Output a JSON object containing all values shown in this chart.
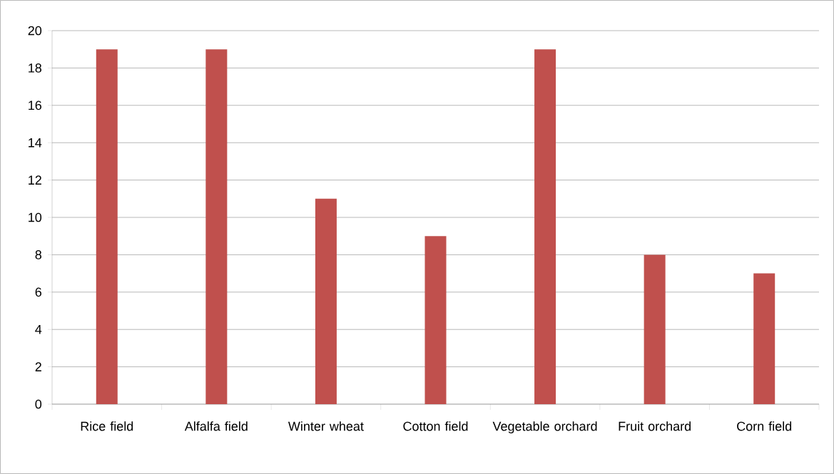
{
  "chart_data": {
    "type": "bar",
    "categories": [
      "Rice field",
      "Alfalfa field",
      "Winter wheat",
      "Cotton field",
      "Vegetable orchard",
      "Fruit orchard",
      "Corn field"
    ],
    "values": [
      19,
      19,
      11,
      9,
      19,
      8,
      7
    ],
    "color": "#c0504d",
    "ylim": [
      0,
      20
    ],
    "yticks": [
      0,
      2,
      4,
      6,
      8,
      10,
      12,
      14,
      16,
      18,
      20
    ],
    "grid": "y"
  }
}
